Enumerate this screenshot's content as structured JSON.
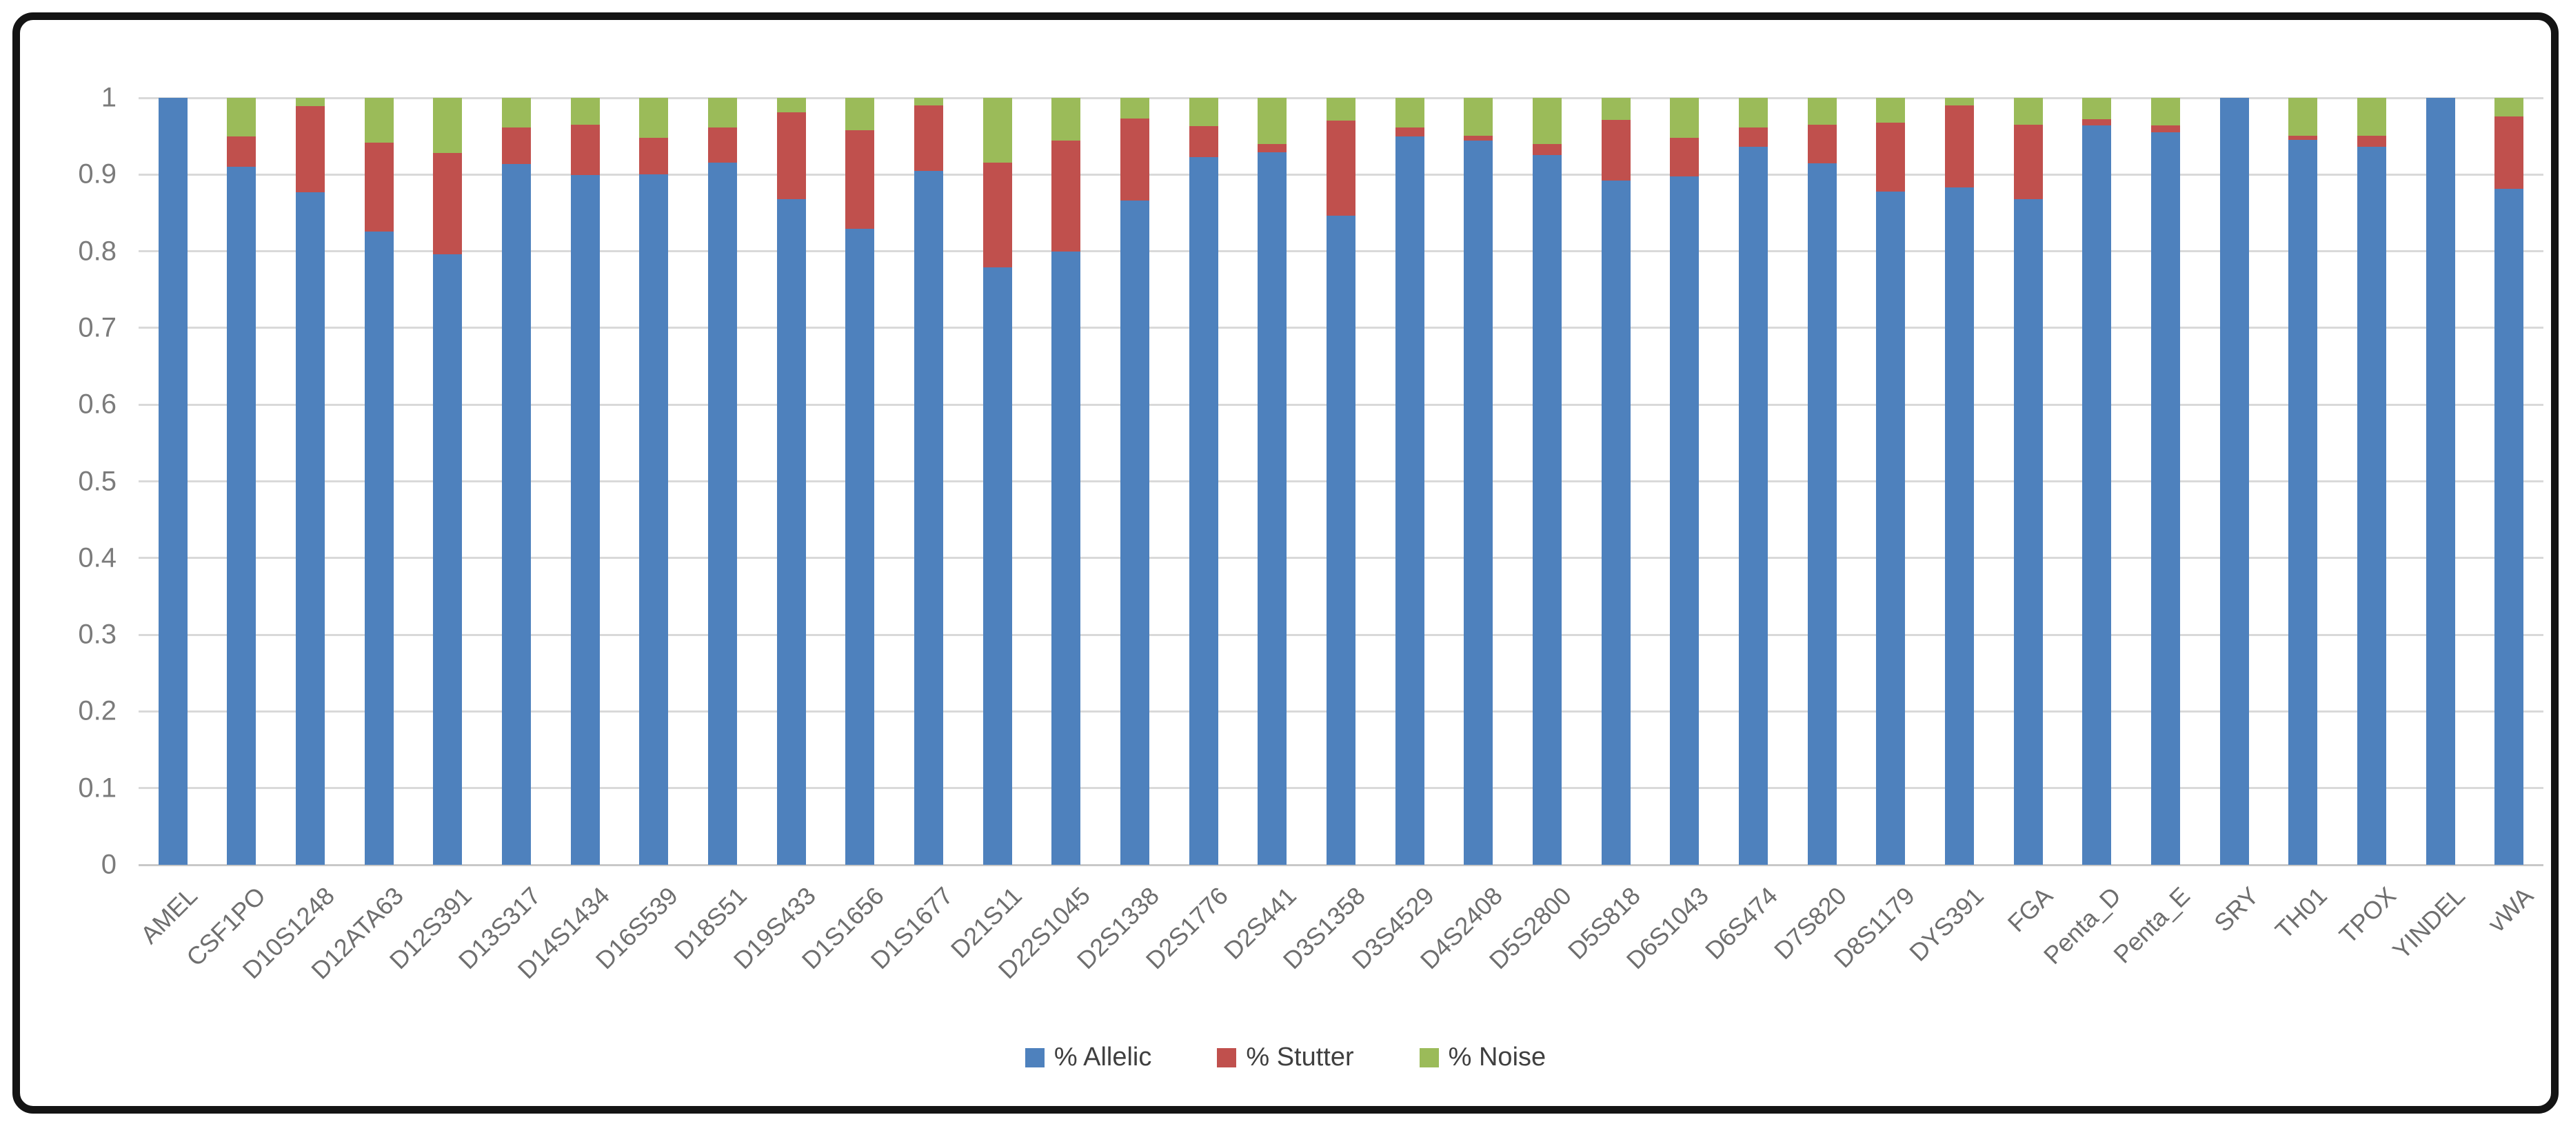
{
  "chart_data": {
    "type": "bar",
    "stacked": true,
    "title": "",
    "xlabel": "",
    "ylabel": "",
    "ylim": [
      0,
      1
    ],
    "grid": "horizontal",
    "legend_position": "bottom-center",
    "y_ticks": [
      "0",
      "0.1",
      "0.2",
      "0.3",
      "0.4",
      "0.5",
      "0.6",
      "0.7",
      "0.8",
      "0.9",
      "1"
    ],
    "categories": [
      "AMEL",
      "CSF1PO",
      "D10S1248",
      "D12ATA63",
      "D12S391",
      "D13S317",
      "D14S1434",
      "D16S539",
      "D18S51",
      "D19S433",
      "D1S1656",
      "D1S1677",
      "D21S11",
      "D22S1045",
      "D2S1338",
      "D2S1776",
      "D2S441",
      "D3S1358",
      "D3S4529",
      "D4S2408",
      "D5S2800",
      "D5S818",
      "D6S1043",
      "D6S474",
      "D7S820",
      "D8S1179",
      "DYS391",
      "FGA",
      "Penta_D",
      "Penta_E",
      "SRY",
      "TH01",
      "TPOX",
      "YINDEL",
      "vWA"
    ],
    "series": [
      {
        "name": "% Allelic",
        "color": "#4E81BD",
        "values": [
          1.0,
          0.91,
          0.877,
          0.826,
          0.796,
          0.914,
          0.899,
          0.9,
          0.916,
          0.868,
          0.829,
          0.905,
          0.779,
          0.8,
          0.866,
          0.923,
          0.929,
          0.846,
          0.95,
          0.944,
          0.925,
          0.892,
          0.898,
          0.936,
          0.915,
          0.878,
          0.883,
          0.868,
          0.964,
          0.955,
          1.0,
          0.945,
          0.936,
          1.0,
          0.881
        ]
      },
      {
        "name": "% Stutter",
        "color": "#C0504D",
        "values": [
          0.0,
          0.04,
          0.112,
          0.116,
          0.132,
          0.047,
          0.066,
          0.048,
          0.045,
          0.113,
          0.129,
          0.085,
          0.137,
          0.144,
          0.107,
          0.04,
          0.011,
          0.124,
          0.011,
          0.007,
          0.015,
          0.079,
          0.05,
          0.025,
          0.05,
          0.09,
          0.107,
          0.097,
          0.008,
          0.009,
          0.0,
          0.006,
          0.015,
          0.0,
          0.095
        ]
      },
      {
        "name": "% Noise",
        "color": "#9BBB59",
        "values": [
          0.0,
          0.05,
          0.011,
          0.058,
          0.072,
          0.039,
          0.035,
          0.052,
          0.039,
          0.019,
          0.042,
          0.01,
          0.084,
          0.056,
          0.027,
          0.037,
          0.06,
          0.03,
          0.039,
          0.049,
          0.06,
          0.029,
          0.052,
          0.039,
          0.035,
          0.032,
          0.01,
          0.035,
          0.028,
          0.036,
          0.0,
          0.049,
          0.049,
          0.0,
          0.024
        ]
      }
    ],
    "colors": {
      "gridline": "#D9D9D9",
      "axis_line": "#C8C8C8",
      "y_tick_text": "#7B7B7B",
      "x_tick_text": "#6E6E6E",
      "legend_text": "#3F3F3F",
      "frame_border": "#141414",
      "background": "#FFFFFF"
    }
  }
}
